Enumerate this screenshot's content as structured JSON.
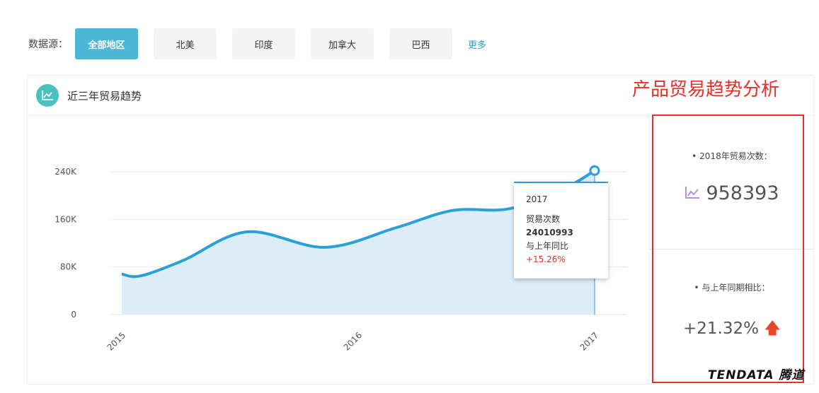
{
  "filter": {
    "label": "数据源：",
    "options": [
      "全部地区",
      "北美",
      "印度",
      "加拿大",
      "巴西"
    ],
    "selected": "全部地区",
    "more": "更多"
  },
  "panel": {
    "title": "近三年贸易趋势",
    "icon": "line-chart-icon"
  },
  "annotation": "产品贸易趋势分析",
  "stats": {
    "trade_count_label": "• 2018年贸易次数：",
    "trade_count": "958393",
    "yoy_label": "• 与上年同期相比：",
    "yoy": "+21.32%",
    "yoy_direction": "up"
  },
  "tooltip": {
    "year": "2017",
    "metric": "贸易次数",
    "value": "24010993",
    "compare_label": "与上年同比",
    "compare": "+15.26%"
  },
  "logo": {
    "text": "TENDATA 腾道"
  },
  "colors": {
    "accent": "#4cb8d6",
    "line": "#2a9fd8",
    "up": "#e8452a",
    "annotation": "#e8302a"
  },
  "chart_data": {
    "type": "area",
    "x_ticks": [
      "2015",
      "2016",
      "2017"
    ],
    "y_ticks": [
      "0",
      "80K",
      "160K",
      "240K"
    ],
    "ylim": [
      0,
      240000
    ],
    "grid": true,
    "x": [
      2015,
      2015.08,
      2015.26,
      2015.53,
      2015.86,
      2016.16,
      2016.4,
      2016.64,
      2016.88,
      2017
    ],
    "values": [
      68000,
      65000,
      91000,
      139000,
      113000,
      146000,
      175000,
      178000,
      214000,
      242000
    ]
  }
}
